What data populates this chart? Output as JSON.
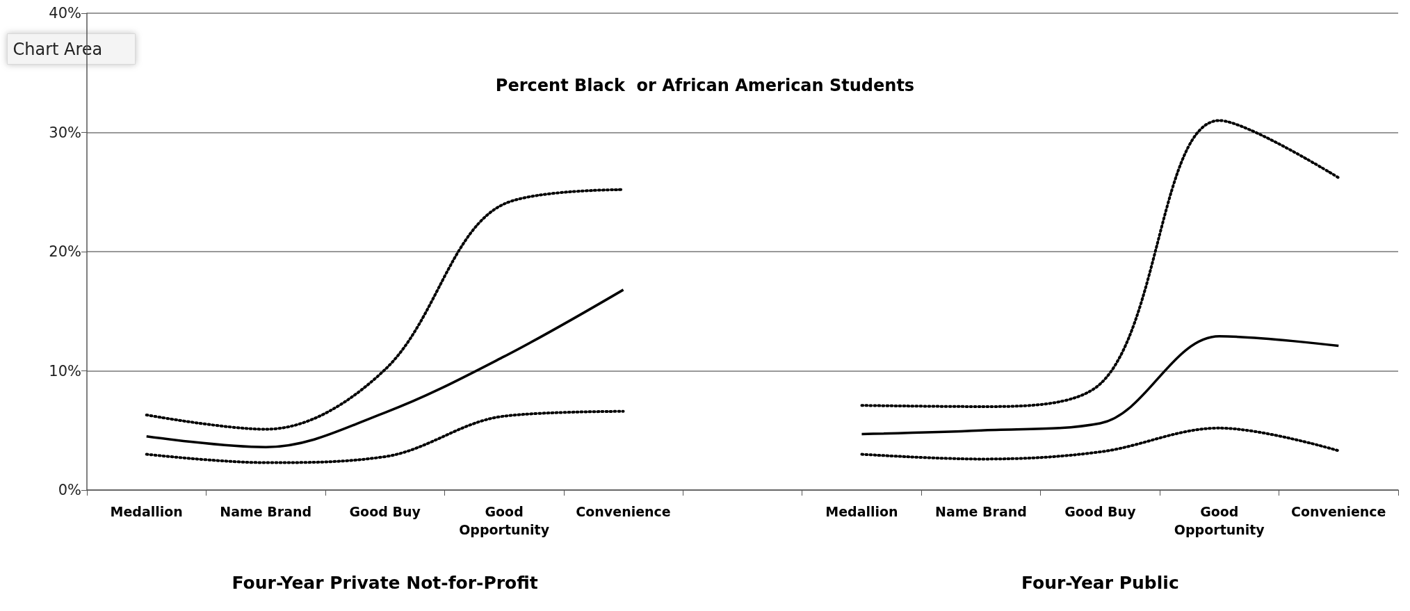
{
  "chart_data": {
    "type": "line",
    "title": "Percent Black  or African American Students",
    "categories": [
      "Medallion",
      "Name Brand",
      "Good Buy",
      "Good Opportunity",
      "Convenience",
      null,
      "Medallion",
      "Name Brand",
      "Good Buy",
      "Good Opportunity",
      "Convenience"
    ],
    "series": [
      {
        "color": "#000000",
        "line_style": "solid",
        "values": [
          4.5,
          3.6,
          6.5,
          11.2,
          16.8,
          null,
          4.7,
          5.0,
          5.6,
          12.9,
          12.1
        ]
      },
      {
        "color": "#000000",
        "line_style": "dotted",
        "values": [
          6.3,
          5.1,
          10.1,
          24,
          25.2,
          null,
          7.1,
          7.0,
          8.9,
          31,
          26.2
        ]
      },
      {
        "color": "#000000",
        "line_style": "dotted",
        "values": [
          3.0,
          2.3,
          2.8,
          6.2,
          6.6,
          null,
          3.0,
          2.6,
          3.2,
          5.2,
          3.3
        ]
      }
    ],
    "ylim": [
      0,
      40
    ],
    "yticks": [
      {
        "value": 0,
        "label": "0%"
      },
      {
        "value": 10,
        "label": "10%"
      },
      {
        "value": 20,
        "label": "20%"
      },
      {
        "value": 30,
        "label": "30%"
      },
      {
        "value": 40,
        "label": "40%"
      }
    ],
    "grid": "y",
    "marker": "none",
    "annotations": [
      "Chart Area",
      "Four-Year Private Not-for-Profit",
      "Four-Year Public"
    ]
  }
}
